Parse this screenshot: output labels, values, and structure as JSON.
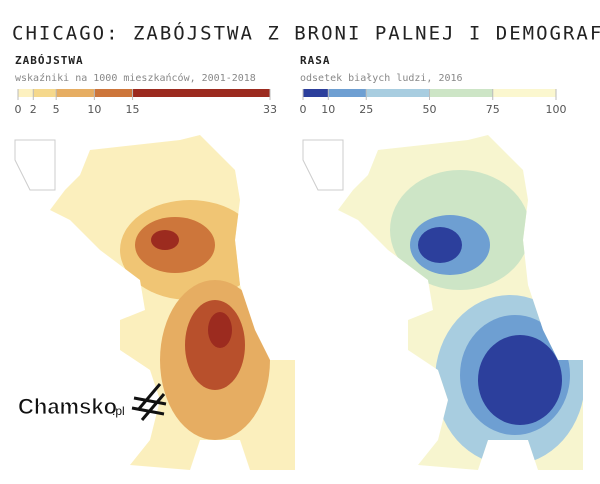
{
  "title": "CHICAGO: ZABÓJSTWA Z BRONI PALNEJ I DEMOGRAFIA",
  "legends": [
    {
      "title": "ZABÓJSTWA",
      "subtitle": "wskaźniki na 1000 mieszkańców, 2001-2018",
      "ticks": [
        0,
        2,
        5,
        10,
        15,
        33
      ],
      "colors": [
        "#fdf1c0",
        "#f5d88c",
        "#e6ad62",
        "#cd763b",
        "#9c2b1f"
      ]
    },
    {
      "title": "RASA",
      "subtitle": "odsetek białych ludzi, 2016",
      "ticks": [
        0,
        10,
        25,
        50,
        75,
        100
      ],
      "colors": [
        "#2c3f9c",
        "#6e9fd2",
        "#a8cde0",
        "#cde5c6",
        "#fbf7cf"
      ]
    }
  ],
  "watermark": {
    "name": "Chamsko",
    "suffix": ".pl"
  }
}
